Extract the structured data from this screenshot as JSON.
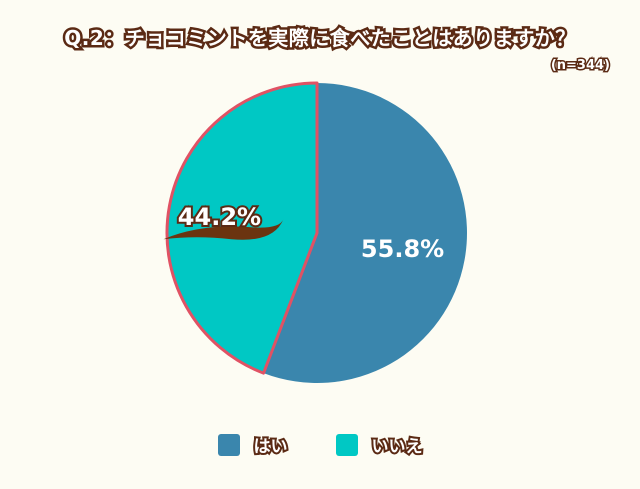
{
  "title": "Q.2：チョコミントを実際に食べたことはありますか？",
  "n_label": "(n=344)",
  "chart_data": {
    "type": "pie",
    "title": "Q.2：チョコミントを実際に食べたことはありますか？",
    "categories": [
      "はい",
      "いいえ"
    ],
    "values": [
      55.8,
      44.2
    ],
    "value_labels": [
      "55.8%",
      "44.2%"
    ],
    "colors": [
      "#3a86ad",
      "#00c8c4"
    ],
    "highlight_color": "#e05264",
    "legend_position": "bottom"
  }
}
